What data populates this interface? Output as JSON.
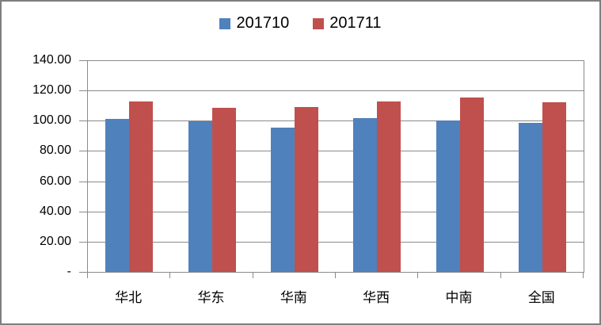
{
  "chart_data": {
    "type": "bar",
    "title": "",
    "categories": [
      "华北",
      "华东",
      "华南",
      "华西",
      "中南",
      "全国"
    ],
    "series": [
      {
        "name": "201710",
        "color": "#4F81BD",
        "values": [
          101.3,
          99.4,
          95.4,
          101.8,
          100.2,
          98.5
        ]
      },
      {
        "name": "201711",
        "color": "#C0504D",
        "values": [
          112.8,
          108.6,
          109.2,
          112.6,
          115.4,
          112.4
        ]
      }
    ],
    "ylim": [
      0,
      140
    ],
    "ytick_step": 20,
    "ytick_labels": [
      "-",
      "20.00",
      "40.00",
      "60.00",
      "80.00",
      "100.00",
      "120.00",
      "140.00"
    ],
    "grid": true,
    "legend_position": "top-center",
    "colors": {
      "grid": "#8A8A8A",
      "axis": "#8A8A8A",
      "frame_border": "#7F7F7F",
      "background": "#FFFFFF",
      "text": "#000000"
    }
  }
}
